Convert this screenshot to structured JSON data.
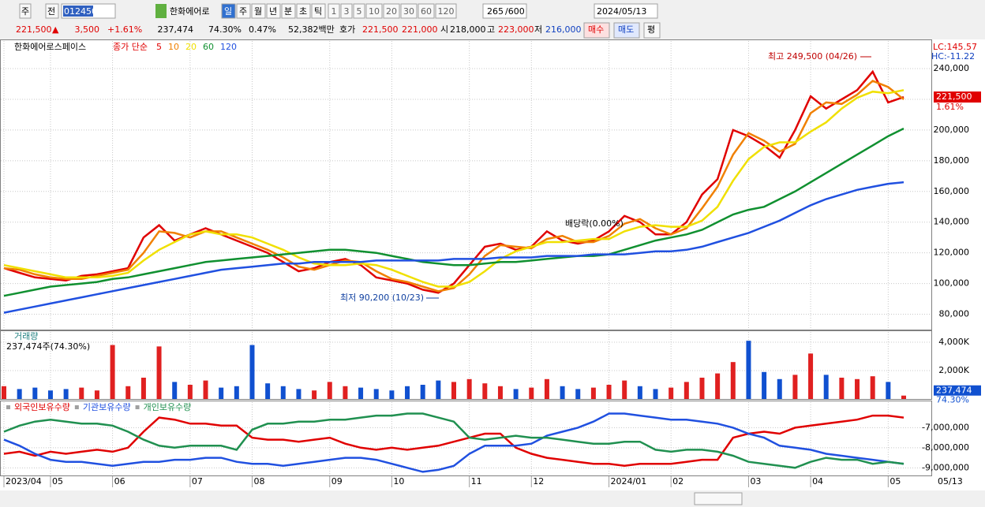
{
  "toolbar": {
    "market": "주",
    "prev": "전",
    "code": "012450",
    "name": "한화에어로",
    "periods": [
      "일",
      "주",
      "월",
      "년",
      "분",
      "초",
      "틱"
    ],
    "intervals": [
      "1",
      "3",
      "5",
      "10",
      "20",
      "30",
      "60",
      "120"
    ],
    "count": "265",
    "max": "/600",
    "date": "2024/05/13"
  },
  "quote": {
    "price": "221,500",
    "arrow": "▲",
    "change": "3,500",
    "change_pct": "+1.61%",
    "volume": "237,474",
    "volume_ratio": "74.30%",
    "turnover": "0.47%",
    "amount": "52,382백만",
    "bid_label": "호가",
    "ask": "221,500",
    "bid": "221,000",
    "open_label": "시",
    "open": "218,000",
    "high_label": "고",
    "high": "223,000",
    "low_label": "저",
    "low": "216,000",
    "buy": "매수",
    "sell": "매도",
    "avg": "평"
  },
  "chart_data": [
    {
      "type": "line",
      "title": "한화에어로스페이스",
      "subtitle": "종가 단순",
      "categories": [
        "2023/04",
        null,
        null,
        "05",
        null,
        null,
        null,
        "06",
        null,
        null,
        null,
        null,
        "07",
        null,
        null,
        null,
        "08",
        null,
        null,
        null,
        null,
        "09",
        null,
        null,
        null,
        "10",
        null,
        null,
        null,
        null,
        "11",
        null,
        null,
        null,
        "12",
        null,
        null,
        null,
        null,
        "2024/01",
        null,
        null,
        null,
        "02",
        null,
        null,
        null,
        null,
        "03",
        null,
        null,
        null,
        "04",
        null,
        null,
        null,
        null,
        "05",
        null
      ],
      "x_end_label": "05/13",
      "series": [
        {
          "name": "5",
          "color": "#e00000",
          "values": [
            110000,
            107000,
            104000,
            103000,
            102000,
            105000,
            106000,
            108000,
            110000,
            130000,
            138000,
            128000,
            132000,
            136000,
            132000,
            128000,
            124000,
            120000,
            114000,
            108000,
            110000,
            114000,
            116000,
            112000,
            104000,
            102000,
            100000,
            96000,
            94000,
            100000,
            112000,
            124000,
            126000,
            122000,
            124000,
            134000,
            128000,
            126000,
            128000,
            134000,
            144000,
            140000,
            132000,
            132000,
            140000,
            158000,
            168000,
            200000,
            196000,
            190000,
            182000,
            200000,
            222000,
            214000,
            220000,
            226000,
            238000,
            218000,
            221500
          ]
        },
        {
          "name": "10",
          "color": "#f08000",
          "values": [
            110000,
            109000,
            106000,
            104000,
            103000,
            103000,
            105000,
            107000,
            109000,
            120000,
            134000,
            133000,
            130000,
            134000,
            134000,
            130000,
            126000,
            122000,
            117000,
            111000,
            109000,
            112000,
            115000,
            114000,
            108000,
            103000,
            101000,
            98000,
            95000,
            97000,
            106000,
            118000,
            125000,
            124000,
            123000,
            129000,
            131000,
            127000,
            127000,
            131000,
            139000,
            142000,
            136000,
            132000,
            136000,
            149000,
            163000,
            184000,
            198000,
            193000,
            186000,
            191000,
            211000,
            218000,
            217000,
            223000,
            232000,
            228000,
            220000
          ]
        },
        {
          "name": "20",
          "color": "#f0e000",
          "values": [
            112000,
            110000,
            108000,
            106000,
            104000,
            104000,
            104000,
            105000,
            107000,
            115000,
            122000,
            127000,
            132000,
            134000,
            132000,
            132000,
            130000,
            126000,
            122000,
            117000,
            113000,
            112000,
            112000,
            113000,
            112000,
            109000,
            105000,
            101000,
            98000,
            98000,
            101000,
            108000,
            116000,
            121000,
            124000,
            127000,
            127000,
            128000,
            129000,
            129000,
            134000,
            137000,
            138000,
            137000,
            137000,
            141000,
            150000,
            167000,
            181000,
            189000,
            192000,
            192000,
            199000,
            205000,
            214000,
            221000,
            225000,
            224000,
            226000
          ]
        },
        {
          "name": "60",
          "color": "#109030",
          "values": [
            92000,
            94000,
            96000,
            98000,
            99000,
            100000,
            101000,
            103000,
            104000,
            106000,
            108000,
            110000,
            112000,
            114000,
            115000,
            116000,
            117000,
            118000,
            119000,
            120000,
            121000,
            122000,
            122000,
            121000,
            120000,
            118000,
            116000,
            114000,
            113000,
            112000,
            112000,
            113000,
            114000,
            114000,
            115000,
            116000,
            117000,
            118000,
            118000,
            119000,
            122000,
            125000,
            128000,
            130000,
            132000,
            135000,
            140000,
            145000,
            148000,
            150000,
            155000,
            160000,
            166000,
            172000,
            178000,
            184000,
            190000,
            196000,
            201000
          ]
        },
        {
          "name": "120",
          "color": "#2050e0",
          "values": [
            81000,
            83000,
            85000,
            87000,
            89000,
            91000,
            93000,
            95000,
            97000,
            99000,
            101000,
            103000,
            105000,
            107000,
            109000,
            110000,
            111000,
            112000,
            113000,
            113000,
            114000,
            114000,
            114000,
            114000,
            115000,
            115000,
            115000,
            115000,
            115000,
            116000,
            116000,
            116000,
            117000,
            117000,
            117000,
            118000,
            118000,
            118000,
            119000,
            119000,
            119000,
            120000,
            121000,
            121000,
            122000,
            124000,
            127000,
            130000,
            133000,
            137000,
            141000,
            146000,
            151000,
            155000,
            158000,
            161000,
            163000,
            165000,
            166000
          ]
        }
      ],
      "ylim": [
        70000,
        258000
      ],
      "yticks": [
        {
          "value": 80000,
          "label": "80,000"
        },
        {
          "value": 100000,
          "label": "100,000"
        },
        {
          "value": 120000,
          "label": "120,000"
        },
        {
          "value": 140000,
          "label": "140,000"
        },
        {
          "value": 160000,
          "label": "160,000"
        },
        {
          "value": 180000,
          "label": "180,000"
        },
        {
          "value": 200000,
          "label": "200,000"
        },
        {
          "value": 220000,
          "label": "220,000"
        },
        {
          "value": 240000,
          "label": "240,000"
        }
      ],
      "grid": true,
      "annotations": [
        "최고 249,500 (04/26)",
        "최저 90,200 (10/23)",
        "배당락(0.00%)"
      ],
      "info_labels": [
        "LC:145.57",
        "HC:-11.22"
      ],
      "last": {
        "value": 221500,
        "label": "221,500"
      },
      "last_change": "1.61%"
    },
    {
      "type": "bar",
      "title": "거래량",
      "subtitle": "237,474주(74.30%)",
      "values": [
        900000,
        700000,
        800000,
        600000,
        700000,
        800000,
        600000,
        3800000,
        900000,
        1500000,
        3700000,
        1200000,
        1000000,
        1300000,
        800000,
        900000,
        3800000,
        1100000,
        900000,
        700000,
        600000,
        1200000,
        900000,
        800000,
        700000,
        600000,
        900000,
        1000000,
        1300000,
        1200000,
        1400000,
        1100000,
        900000,
        700000,
        800000,
        1400000,
        900000,
        700000,
        800000,
        1000000,
        1300000,
        900000,
        700000,
        800000,
        1200000,
        1500000,
        1800000,
        2600000,
        4100000,
        1900000,
        1400000,
        1700000,
        3200000,
        1700000,
        1500000,
        1400000,
        1600000,
        1200000,
        237474
      ],
      "up_color": "#e02020",
      "down_color": "#1050d0",
      "ylim": [
        0,
        4720000
      ],
      "yticks": [
        {
          "value": 2000000,
          "label": "2,000K"
        },
        {
          "value": 4000000,
          "label": "4,000K"
        }
      ],
      "grid": true,
      "last": {
        "value": 237474,
        "label": "237,474"
      },
      "last_ratio": "74.30%"
    },
    {
      "type": "line",
      "series": [
        {
          "name": "외국인보유수량",
          "color": "#e00000",
          "values": [
            -8300000,
            -8200000,
            -8400000,
            -8200000,
            -8300000,
            -8200000,
            -8100000,
            -8200000,
            -8000000,
            -7200000,
            -6500000,
            -6600000,
            -6800000,
            -6800000,
            -6900000,
            -6900000,
            -7500000,
            -7600000,
            -7600000,
            -7700000,
            -7600000,
            -7500000,
            -7800000,
            -8000000,
            -8100000,
            -8000000,
            -8100000,
            -8000000,
            -7900000,
            -7700000,
            -7500000,
            -7300000,
            -7300000,
            -8000000,
            -8300000,
            -8500000,
            -8600000,
            -8700000,
            -8800000,
            -8800000,
            -8900000,
            -8800000,
            -8800000,
            -8800000,
            -8700000,
            -8600000,
            -8600000,
            -7500000,
            -7300000,
            -7200000,
            -7300000,
            -7000000,
            -6900000,
            -6800000,
            -6700000,
            -6600000,
            -6400000,
            -6400000,
            -6500000
          ]
        },
        {
          "name": "기관보유수량",
          "color": "#2050e0",
          "values": [
            -7600000,
            -7900000,
            -8300000,
            -8600000,
            -8700000,
            -8700000,
            -8800000,
            -8900000,
            -8800000,
            -8700000,
            -8700000,
            -8600000,
            -8600000,
            -8500000,
            -8500000,
            -8700000,
            -8800000,
            -8800000,
            -8900000,
            -8800000,
            -8700000,
            -8600000,
            -8500000,
            -8500000,
            -8600000,
            -8800000,
            -9000000,
            -9200000,
            -9100000,
            -8900000,
            -8300000,
            -7900000,
            -7900000,
            -7900000,
            -7800000,
            -7400000,
            -7200000,
            -7000000,
            -6700000,
            -6300000,
            -6300000,
            -6400000,
            -6500000,
            -6600000,
            -6600000,
            -6700000,
            -6800000,
            -7000000,
            -7300000,
            -7500000,
            -7900000,
            -8000000,
            -8100000,
            -8300000,
            -8400000,
            -8500000,
            -8600000,
            -8700000,
            -8800000
          ]
        },
        {
          "name": "개인보유수량",
          "color": "#209050",
          "values": [
            -7200000,
            -6900000,
            -6700000,
            -6600000,
            -6700000,
            -6800000,
            -6800000,
            -6900000,
            -7200000,
            -7600000,
            -7900000,
            -8000000,
            -7900000,
            -7900000,
            -7900000,
            -8100000,
            -7100000,
            -6800000,
            -6800000,
            -6700000,
            -6700000,
            -6600000,
            -6600000,
            -6500000,
            -6400000,
            -6400000,
            -6300000,
            -6300000,
            -6500000,
            -6700000,
            -7500000,
            -7600000,
            -7500000,
            -7400000,
            -7500000,
            -7500000,
            -7600000,
            -7700000,
            -7800000,
            -7800000,
            -7700000,
            -7700000,
            -8100000,
            -8200000,
            -8100000,
            -8100000,
            -8200000,
            -8400000,
            -8700000,
            -8800000,
            -8900000,
            -9000000,
            -8700000,
            -8500000,
            -8600000,
            -8600000,
            -8800000,
            -8700000,
            -8800000
          ]
        }
      ],
      "ylim": [
        -9380000,
        -5730000
      ],
      "yticks": [
        {
          "value": -9000000,
          "label": "-9,000,000"
        },
        {
          "value": -8000000,
          "label": "-8,000,000"
        },
        {
          "value": -7000000,
          "label": "-7,000,000"
        }
      ],
      "grid": true
    }
  ]
}
